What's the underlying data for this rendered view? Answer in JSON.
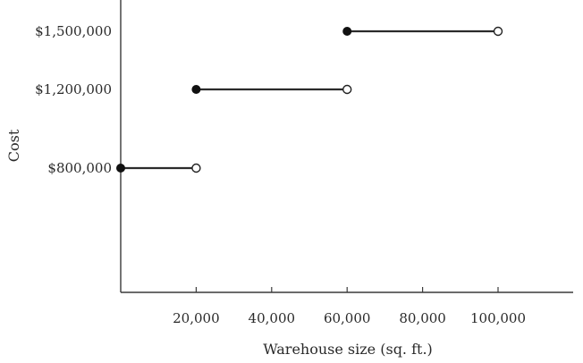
{
  "chart_data": {
    "type": "step",
    "xlabel": "Warehouse size (sq. ft.)",
    "ylabel": "Cost",
    "xlim": [
      0,
      120000
    ],
    "ylim": [
      0,
      1600000
    ],
    "x_ticks": [
      {
        "value": 20000,
        "label": "20,000"
      },
      {
        "value": 40000,
        "label": "40,000"
      },
      {
        "value": 60000,
        "label": "60,000"
      },
      {
        "value": 80000,
        "label": "80,000"
      },
      {
        "value": 100000,
        "label": "100,000"
      }
    ],
    "y_ticks": [
      {
        "value": 800000,
        "label": "$800,000"
      },
      {
        "value": 1200000,
        "label": "$1,200,000"
      },
      {
        "value": 1500000,
        "label": "$1,500,000"
      }
    ],
    "segments": [
      {
        "x_start": 0,
        "x_end": 20000,
        "y": 800000,
        "start": "closed",
        "end": "open"
      },
      {
        "x_start": 20000,
        "x_end": 60000,
        "y": 1200000,
        "start": "closed",
        "end": "open"
      },
      {
        "x_start": 60000,
        "x_end": 100000,
        "y": 1500000,
        "start": "closed",
        "end": "open"
      }
    ],
    "grid": false
  }
}
